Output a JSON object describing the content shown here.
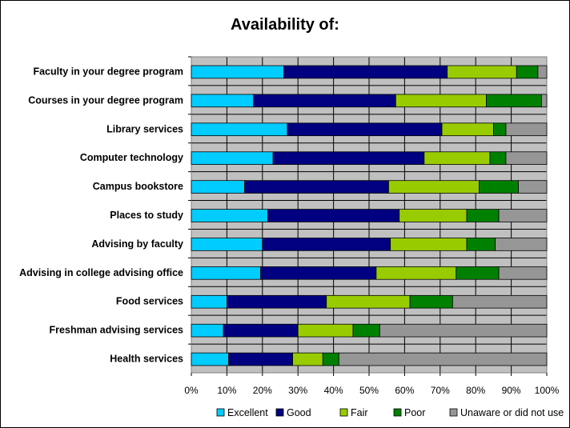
{
  "chart_data": {
    "type": "bar",
    "orientation": "horizontal",
    "stacked": "percent",
    "title": "Availability of:",
    "xlabel": "",
    "ylabel": "",
    "xlim": [
      0,
      100
    ],
    "x_ticks": [
      "0%",
      "10%",
      "20%",
      "30%",
      "40%",
      "50%",
      "60%",
      "70%",
      "80%",
      "90%",
      "100%"
    ],
    "grid": true,
    "legend_position": "bottom",
    "categories": [
      "Faculty in your degree program",
      "Courses in your degree program",
      "Library services",
      "Computer technology",
      "Campus bookstore",
      "Places to study",
      "Advising by faculty",
      "Advising in college advising office",
      "Food services",
      "Freshman advising services",
      "Health services"
    ],
    "series": [
      {
        "name": "Excellent",
        "color": "#00CCFF",
        "values": [
          26,
          17.5,
          27,
          23,
          15,
          21.5,
          20,
          19.5,
          10,
          9,
          10.5
        ]
      },
      {
        "name": "Good",
        "color": "#000080",
        "values": [
          46,
          40,
          43.5,
          42.5,
          40.5,
          37,
          36,
          32.5,
          28,
          21,
          18
        ]
      },
      {
        "name": "Fair",
        "color": "#99CC00",
        "values": [
          19.5,
          25.5,
          14.5,
          18.5,
          25.5,
          19,
          21.5,
          22.5,
          23.5,
          15.5,
          8.5
        ]
      },
      {
        "name": "Poor",
        "color": "#008000",
        "values": [
          6,
          15.5,
          3.5,
          4.5,
          11,
          9,
          8,
          12,
          12,
          7.5,
          4.5
        ]
      },
      {
        "name": "Unaware or did not use",
        "color": "#969696",
        "values": [
          2.5,
          1.5,
          11.5,
          11.5,
          8,
          13.5,
          14.5,
          13.5,
          26.5,
          47,
          58.5
        ]
      }
    ]
  }
}
